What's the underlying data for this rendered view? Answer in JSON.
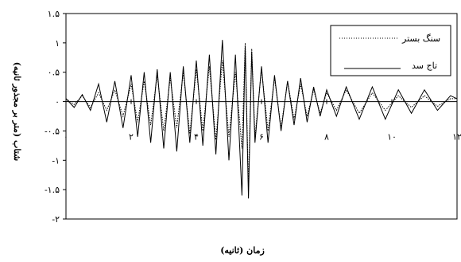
{
  "chart_data": {
    "type": "line",
    "xlabel": "زمان (ثانیه)",
    "ylabel": "شتاب (متر بر مجذور ثانیه)",
    "xlim": [
      0,
      12
    ],
    "ylim": [
      -2,
      1.5
    ],
    "grid": false,
    "legend_position": "top-right",
    "x_ticks": [
      {
        "value": 0,
        "label": "۰"
      },
      {
        "value": 2,
        "label": "۲"
      },
      {
        "value": 4,
        "label": "۴"
      },
      {
        "value": 6,
        "label": "۶"
      },
      {
        "value": 8,
        "label": "۸"
      },
      {
        "value": 10,
        "label": "۱۰"
      },
      {
        "value": 12,
        "label": "۱۲"
      }
    ],
    "y_ticks": [
      {
        "value": 1.5,
        "label": "۱.۵"
      },
      {
        "value": 1,
        "label": "۱"
      },
      {
        "value": 0.5,
        "label": "۰.۵"
      },
      {
        "value": 0,
        "label": "۰"
      },
      {
        "value": -0.5,
        "label": "-۰.۵"
      },
      {
        "value": -1,
        "label": "-۱"
      },
      {
        "value": -1.5,
        "label": "-۱.۵"
      },
      {
        "value": -2,
        "label": "-۲"
      }
    ],
    "series": [
      {
        "name": "سنگ بستر",
        "style": "dotted",
        "color": "#000000",
        "x": [
          0,
          0.25,
          0.5,
          0.75,
          1,
          1.25,
          1.5,
          1.75,
          2,
          2.2,
          2.4,
          2.6,
          2.8,
          3,
          3.2,
          3.4,
          3.6,
          3.8,
          4,
          4.2,
          4.4,
          4.6,
          4.8,
          5,
          5.2,
          5.4,
          5.5,
          5.6,
          5.7,
          5.8,
          6,
          6.2,
          6.4,
          6.6,
          6.8,
          7,
          7.2,
          7.4,
          7.6,
          7.8,
          8,
          8.3,
          8.6,
          9,
          9.4,
          9.8,
          10.2,
          10.6,
          11,
          11.4,
          11.8,
          12
        ],
        "y": [
          0.05,
          -0.05,
          0.1,
          -0.1,
          0.15,
          -0.15,
          0.2,
          -0.25,
          0.3,
          -0.35,
          0.35,
          -0.4,
          0.45,
          -0.5,
          0.4,
          -0.45,
          0.5,
          -0.55,
          0.55,
          -0.5,
          0.6,
          -0.65,
          0.7,
          -0.6,
          0.5,
          -0.8,
          1.0,
          -1.45,
          0.9,
          -0.6,
          0.55,
          -0.5,
          0.4,
          -0.45,
          0.35,
          -0.3,
          0.3,
          -0.25,
          0.2,
          -0.2,
          0.15,
          -0.15,
          0.2,
          -0.2,
          0.15,
          -0.15,
          0.1,
          -0.1,
          0.1,
          -0.08,
          0.05,
          0.05
        ]
      },
      {
        "name": "تاج سد",
        "style": "solid",
        "color": "#000000",
        "x": [
          0,
          0.25,
          0.5,
          0.75,
          1,
          1.25,
          1.5,
          1.75,
          2,
          2.2,
          2.4,
          2.6,
          2.8,
          3,
          3.2,
          3.4,
          3.6,
          3.8,
          4,
          4.2,
          4.4,
          4.6,
          4.8,
          5,
          5.2,
          5.4,
          5.5,
          5.6,
          5.7,
          5.8,
          6,
          6.2,
          6.4,
          6.6,
          6.8,
          7,
          7.2,
          7.4,
          7.6,
          7.8,
          8,
          8.3,
          8.6,
          9,
          9.4,
          9.8,
          10.2,
          10.6,
          11,
          11.4,
          11.8,
          12
        ],
        "y": [
          0.05,
          -0.1,
          0.12,
          -0.15,
          0.3,
          -0.35,
          0.35,
          -0.45,
          0.45,
          -0.6,
          0.5,
          -0.7,
          0.55,
          -0.8,
          0.5,
          -0.85,
          0.6,
          -0.7,
          0.7,
          -0.75,
          0.8,
          -0.9,
          1.05,
          -1.0,
          0.8,
          -1.6,
          0.95,
          -1.65,
          0.85,
          -0.7,
          0.6,
          -0.7,
          0.45,
          -0.5,
          0.35,
          -0.4,
          0.4,
          -0.35,
          0.25,
          -0.25,
          0.2,
          -0.25,
          0.25,
          -0.3,
          0.25,
          -0.3,
          0.2,
          -0.2,
          0.2,
          -0.15,
          0.1,
          0.05
        ]
      }
    ]
  }
}
